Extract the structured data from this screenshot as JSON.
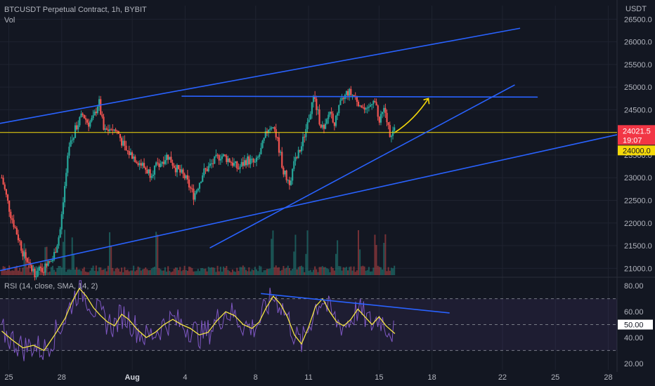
{
  "header": {
    "title": "BTCUSDT Perpetual Contract, 1h, BYBIT",
    "volume_label": "Vol",
    "rsi_label": "RSI (14, close, SMA, 14, 2)"
  },
  "colors": {
    "background": "#131722",
    "trendline": "#2962ff",
    "level_line": "#f5d90a",
    "candle_up": "#26a69a",
    "candle_down": "#ef5350",
    "rsi_line": "#7e57c2",
    "rsi_ma": "#f5e642",
    "price_tag": "#f23645",
    "level_tag": "#f5d90a"
  },
  "chart_data": [
    {
      "type": "candlestick",
      "title": "BTCUSDT Perpetual Contract, 1h, BYBIT",
      "y_axis_unit": "USDT",
      "ylim": [
        20850,
        26800
      ],
      "y_ticks": [
        21000,
        21500,
        22000,
        22500,
        23000,
        23500,
        24000,
        24500,
        25000,
        25500,
        26000,
        26500
      ],
      "y_tick_labels": [
        "21000.0",
        "21500.0",
        "22000.0",
        "22500.0",
        "23000.0",
        "23500.0",
        "24000.0",
        "24500.0",
        "25000.0",
        "25500.0",
        "26000.0",
        "26500.0"
      ],
      "x_tick_labels": [
        "25",
        "28",
        "Aug",
        "4",
        "8",
        "11",
        "15",
        "18",
        "22",
        "25",
        "28"
      ],
      "x_tick_days": [
        -7,
        -4,
        0,
        3,
        7,
        10,
        14,
        17,
        21,
        24,
        27
      ],
      "x_range_days": [
        -7.5,
        27.5
      ],
      "last_day": 14.9,
      "last_price": "24021.5",
      "countdown": "19:07",
      "level_price": "24000.0",
      "level_value": 24000,
      "path_days": [
        -7.4,
        -6.9,
        -6.4,
        -6.0,
        -5.5,
        -5.0,
        -4.5,
        -4.1,
        -3.6,
        -3.2,
        -2.8,
        -2.5,
        -2.2,
        -1.9,
        -1.6,
        -1.2,
        -0.8,
        -0.4,
        0.0,
        0.5,
        1.0,
        1.5,
        2.0,
        2.5,
        3.0,
        3.5,
        4.0,
        4.5,
        5.0,
        5.5,
        6.0,
        6.5,
        7.0,
        7.3,
        7.7,
        8.0,
        8.3,
        8.6,
        8.9,
        9.2,
        9.6,
        10.0,
        10.3,
        10.6,
        10.9,
        11.2,
        11.5,
        11.8,
        12.2,
        12.6,
        13.0,
        13.3,
        13.7,
        14.0,
        14.3,
        14.6,
        14.9
      ],
      "path_prices": [
        23000,
        22200,
        21600,
        21100,
        20900,
        21000,
        21200,
        21800,
        23600,
        24100,
        24400,
        24200,
        24300,
        24700,
        24000,
        24100,
        24000,
        23600,
        23500,
        23300,
        23100,
        23300,
        23500,
        23200,
        23000,
        22600,
        23100,
        23300,
        23500,
        23400,
        23200,
        23400,
        23300,
        23600,
        24100,
        24200,
        23700,
        23100,
        22900,
        23300,
        23700,
        24300,
        24800,
        24300,
        24000,
        24500,
        24200,
        24600,
        24900,
        24800,
        24600,
        24400,
        24800,
        24200,
        24500,
        24000,
        24021.5
      ],
      "volume_spike_days": [
        -6.1,
        -4.9,
        -3.9,
        -3.4,
        -1.2,
        1.4,
        7.9,
        9.2,
        9.9,
        11.6,
        12.9,
        13.8,
        14.3
      ],
      "annotations": {
        "channel_upper": {
          "from": [
            -7.5,
            24200
          ],
          "to": [
            22.0,
            26300
          ]
        },
        "channel_lower": {
          "from": [
            -7.5,
            20950
          ],
          "to": [
            27.5,
            23950
          ]
        },
        "horizontal_resistance": {
          "from": [
            2.8,
            24800
          ],
          "to": [
            23.0,
            24780
          ]
        },
        "rising_support": {
          "from": [
            4.4,
            21450
          ],
          "to": [
            21.7,
            25050
          ]
        },
        "arrow": {
          "from": [
            14.9,
            24000
          ],
          "to": [
            16.8,
            24750
          ]
        }
      }
    },
    {
      "type": "line",
      "title": "RSI (14, close, SMA, 14, 2)",
      "ylim": [
        15,
        85
      ],
      "y_ticks": [
        20,
        40,
        60,
        80
      ],
      "y_tick_labels": [
        "20.00",
        "40.00",
        "60.00",
        "80.00"
      ],
      "bands": [
        70,
        50,
        30
      ],
      "current_label": "50.00",
      "current_value": 50,
      "ma_days": [
        -7.4,
        -6.8,
        -6.2,
        -5.6,
        -5.0,
        -4.4,
        -3.8,
        -3.4,
        -3.0,
        -2.6,
        -2.2,
        -1.8,
        -1.4,
        -1.0,
        -0.6,
        -0.2,
        0.3,
        0.8,
        1.3,
        1.8,
        2.3,
        2.8,
        3.3,
        3.8,
        4.3,
        4.8,
        5.3,
        5.8,
        6.3,
        6.8,
        7.2,
        7.6,
        8.0,
        8.4,
        8.8,
        9.2,
        9.6,
        10.0,
        10.4,
        10.8,
        11.2,
        11.6,
        12.0,
        12.4,
        12.8,
        13.2,
        13.6,
        14.0,
        14.4,
        14.9
      ],
      "ma_values": [
        45,
        38,
        32,
        34,
        30,
        42,
        55,
        68,
        78,
        72,
        63,
        57,
        52,
        49,
        58,
        54,
        46,
        40,
        44,
        50,
        54,
        50,
        47,
        42,
        44,
        53,
        60,
        57,
        50,
        47,
        52,
        63,
        72,
        66,
        56,
        42,
        35,
        48,
        64,
        70,
        60,
        52,
        49,
        54,
        62,
        56,
        50,
        56,
        49,
        43
      ],
      "annotations": {
        "rsi_trendline": {
          "from": [
            7.3,
            74
          ],
          "to": [
            18.0,
            59
          ]
        }
      }
    }
  ]
}
